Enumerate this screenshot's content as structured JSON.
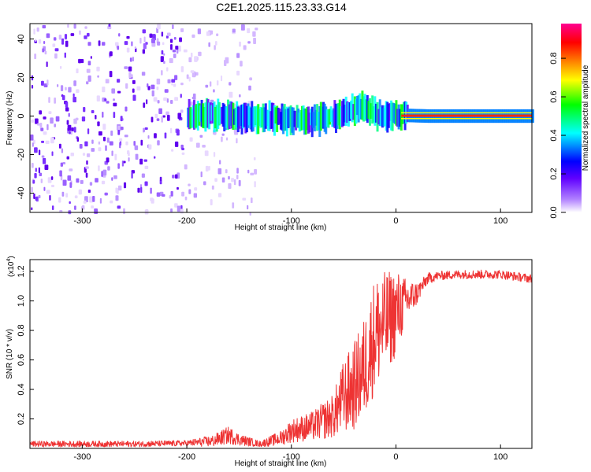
{
  "figure_title": "C2E1.2025.115.23.33.G14",
  "chart_data": [
    {
      "type": "heatmap",
      "name": "spectrogram",
      "title": "C2E1.2025.115.23.33.G14",
      "xlabel": "Height of straight line (km)",
      "ylabel": "Frequency (Hz)",
      "xlim": [
        -350,
        130
      ],
      "ylim": [
        -50,
        48
      ],
      "x_ticks": [
        -300,
        -200,
        -100,
        0,
        100
      ],
      "y_ticks": [
        -40,
        -20,
        0,
        20,
        40
      ],
      "grid": false,
      "description_of_content": "",
      "colorbar": {
        "label": "Normalized spectral amplitude",
        "range": [
          0.0,
          0.98
        ],
        "ticks": [
          0.0,
          0.2,
          0.4,
          0.6,
          0.8
        ],
        "colors": [
          "#ffffff",
          "#8000ff",
          "#0000ff",
          "#00ffff",
          "#00ff00",
          "#ffff00",
          "#ff8000",
          "#ff0000",
          "#ff00a0"
        ]
      },
      "signal_center_hz": [
        {
          "x": -190,
          "f": 0.5
        },
        {
          "x": -160,
          "f": 0.0
        },
        {
          "x": -120,
          "f": -1.0
        },
        {
          "x": -80,
          "f": -2.0
        },
        {
          "x": -50,
          "f": 1.0
        },
        {
          "x": -35,
          "f": 5.0
        },
        {
          "x": -20,
          "f": 1.0
        },
        {
          "x": 0,
          "f": 0.5
        },
        {
          "x": 30,
          "f": 0.0
        },
        {
          "x": 130,
          "f": 0.0
        }
      ]
    },
    {
      "type": "line",
      "name": "snr",
      "xlabel": "Height of straight line (km)",
      "ylabel": "SNR (10 * v/v)",
      "y_multiplier": "(x10⁴)",
      "y_multiplier_base": "(x10",
      "y_multiplier_exp": "4",
      "y_multiplier_close": ")",
      "xlim": [
        -350,
        130
      ],
      "ylim": [
        0,
        1.28
      ],
      "x_ticks": [
        -300,
        -200,
        -100,
        0,
        100
      ],
      "y_ticks": [
        0.2,
        0.4,
        0.6,
        0.8,
        1.0,
        1.2
      ],
      "grid": false,
      "color": "#ee3333",
      "series": [
        {
          "x": [
            -350,
            -300,
            -250,
            -200,
            -175,
            -160,
            -150,
            -130,
            -110,
            -100,
            -80,
            -60,
            -50,
            -40,
            -30,
            -20,
            -10,
            0,
            10,
            20,
            25,
            30,
            40,
            60,
            80,
            100,
            120,
            130
          ],
          "mean": [
            0.03,
            0.03,
            0.03,
            0.035,
            0.05,
            0.09,
            0.06,
            0.03,
            0.07,
            0.12,
            0.15,
            0.22,
            0.35,
            0.42,
            0.55,
            0.78,
            0.85,
            0.92,
            1.0,
            1.05,
            1.1,
            1.15,
            1.17,
            1.18,
            1.18,
            1.18,
            1.16,
            1.15
          ],
          "noise": [
            0.02,
            0.02,
            0.02,
            0.02,
            0.04,
            0.06,
            0.04,
            0.02,
            0.05,
            0.08,
            0.1,
            0.15,
            0.25,
            0.3,
            0.35,
            0.4,
            0.35,
            0.3,
            0.15,
            0.08,
            0.05,
            0.04,
            0.03,
            0.03,
            0.03,
            0.03,
            0.03,
            0.03
          ]
        }
      ]
    }
  ]
}
